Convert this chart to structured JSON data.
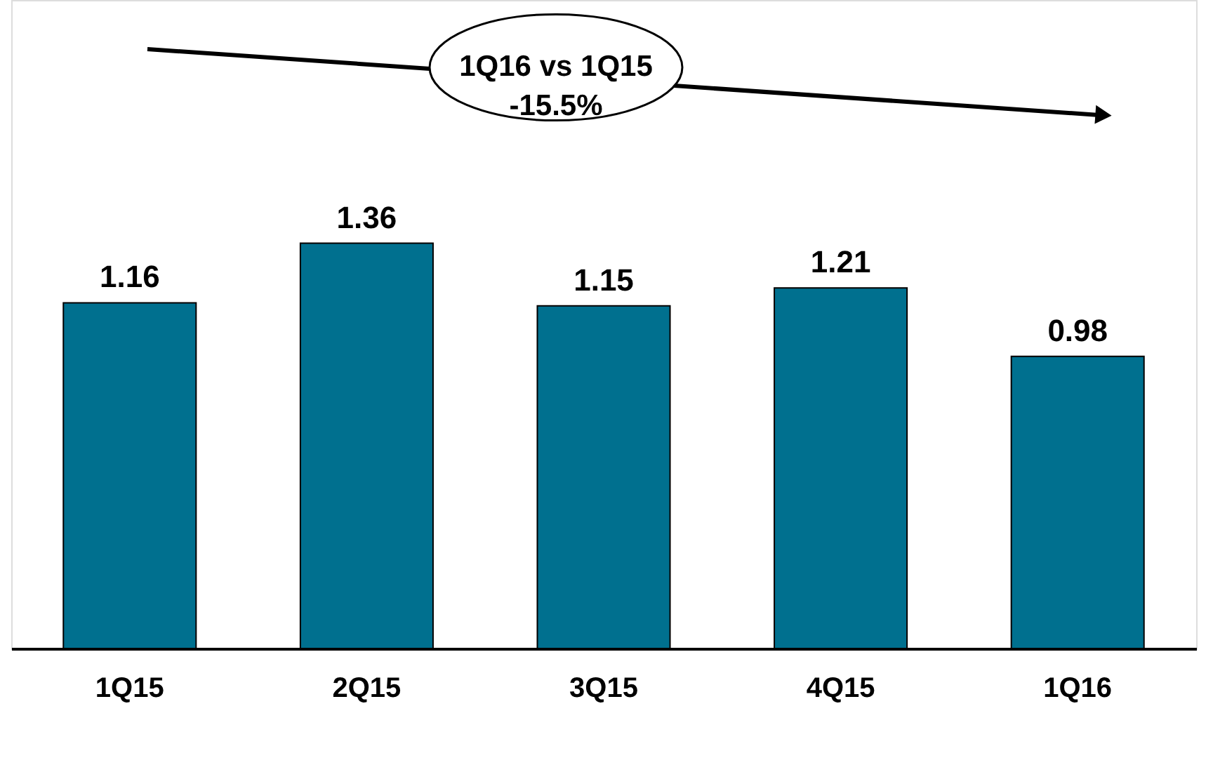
{
  "chart_data": {
    "type": "bar",
    "categories": [
      "1Q15",
      "2Q15",
      "3Q15",
      "4Q15",
      "1Q16"
    ],
    "values": [
      1.16,
      1.36,
      1.15,
      1.21,
      0.98
    ],
    "color": "#00708f",
    "data_labels": true,
    "grid": false,
    "annotations": [
      "1Q16 vs 1Q15\n-15.5%"
    ]
  }
}
